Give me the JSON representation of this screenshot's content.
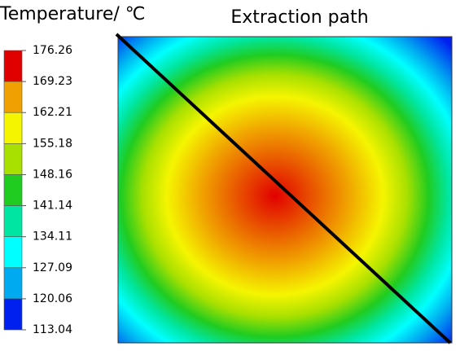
{
  "chart_data": {
    "type": "contour",
    "title": "Temperature/ ℃",
    "annotation": "Extraction path",
    "colorbar_ticks": [
      176.26,
      169.23,
      162.21,
      155.18,
      148.16,
      141.14,
      134.11,
      127.09,
      120.06,
      113.04
    ],
    "colorbar_lim": [
      113.04,
      176.26
    ],
    "colors": [
      "#e10000",
      "#f0a000",
      "#f5f500",
      "#a8e000",
      "#20cc20",
      "#00e6a0",
      "#00ffff",
      "#00aaf0",
      "#0020f0"
    ]
  }
}
